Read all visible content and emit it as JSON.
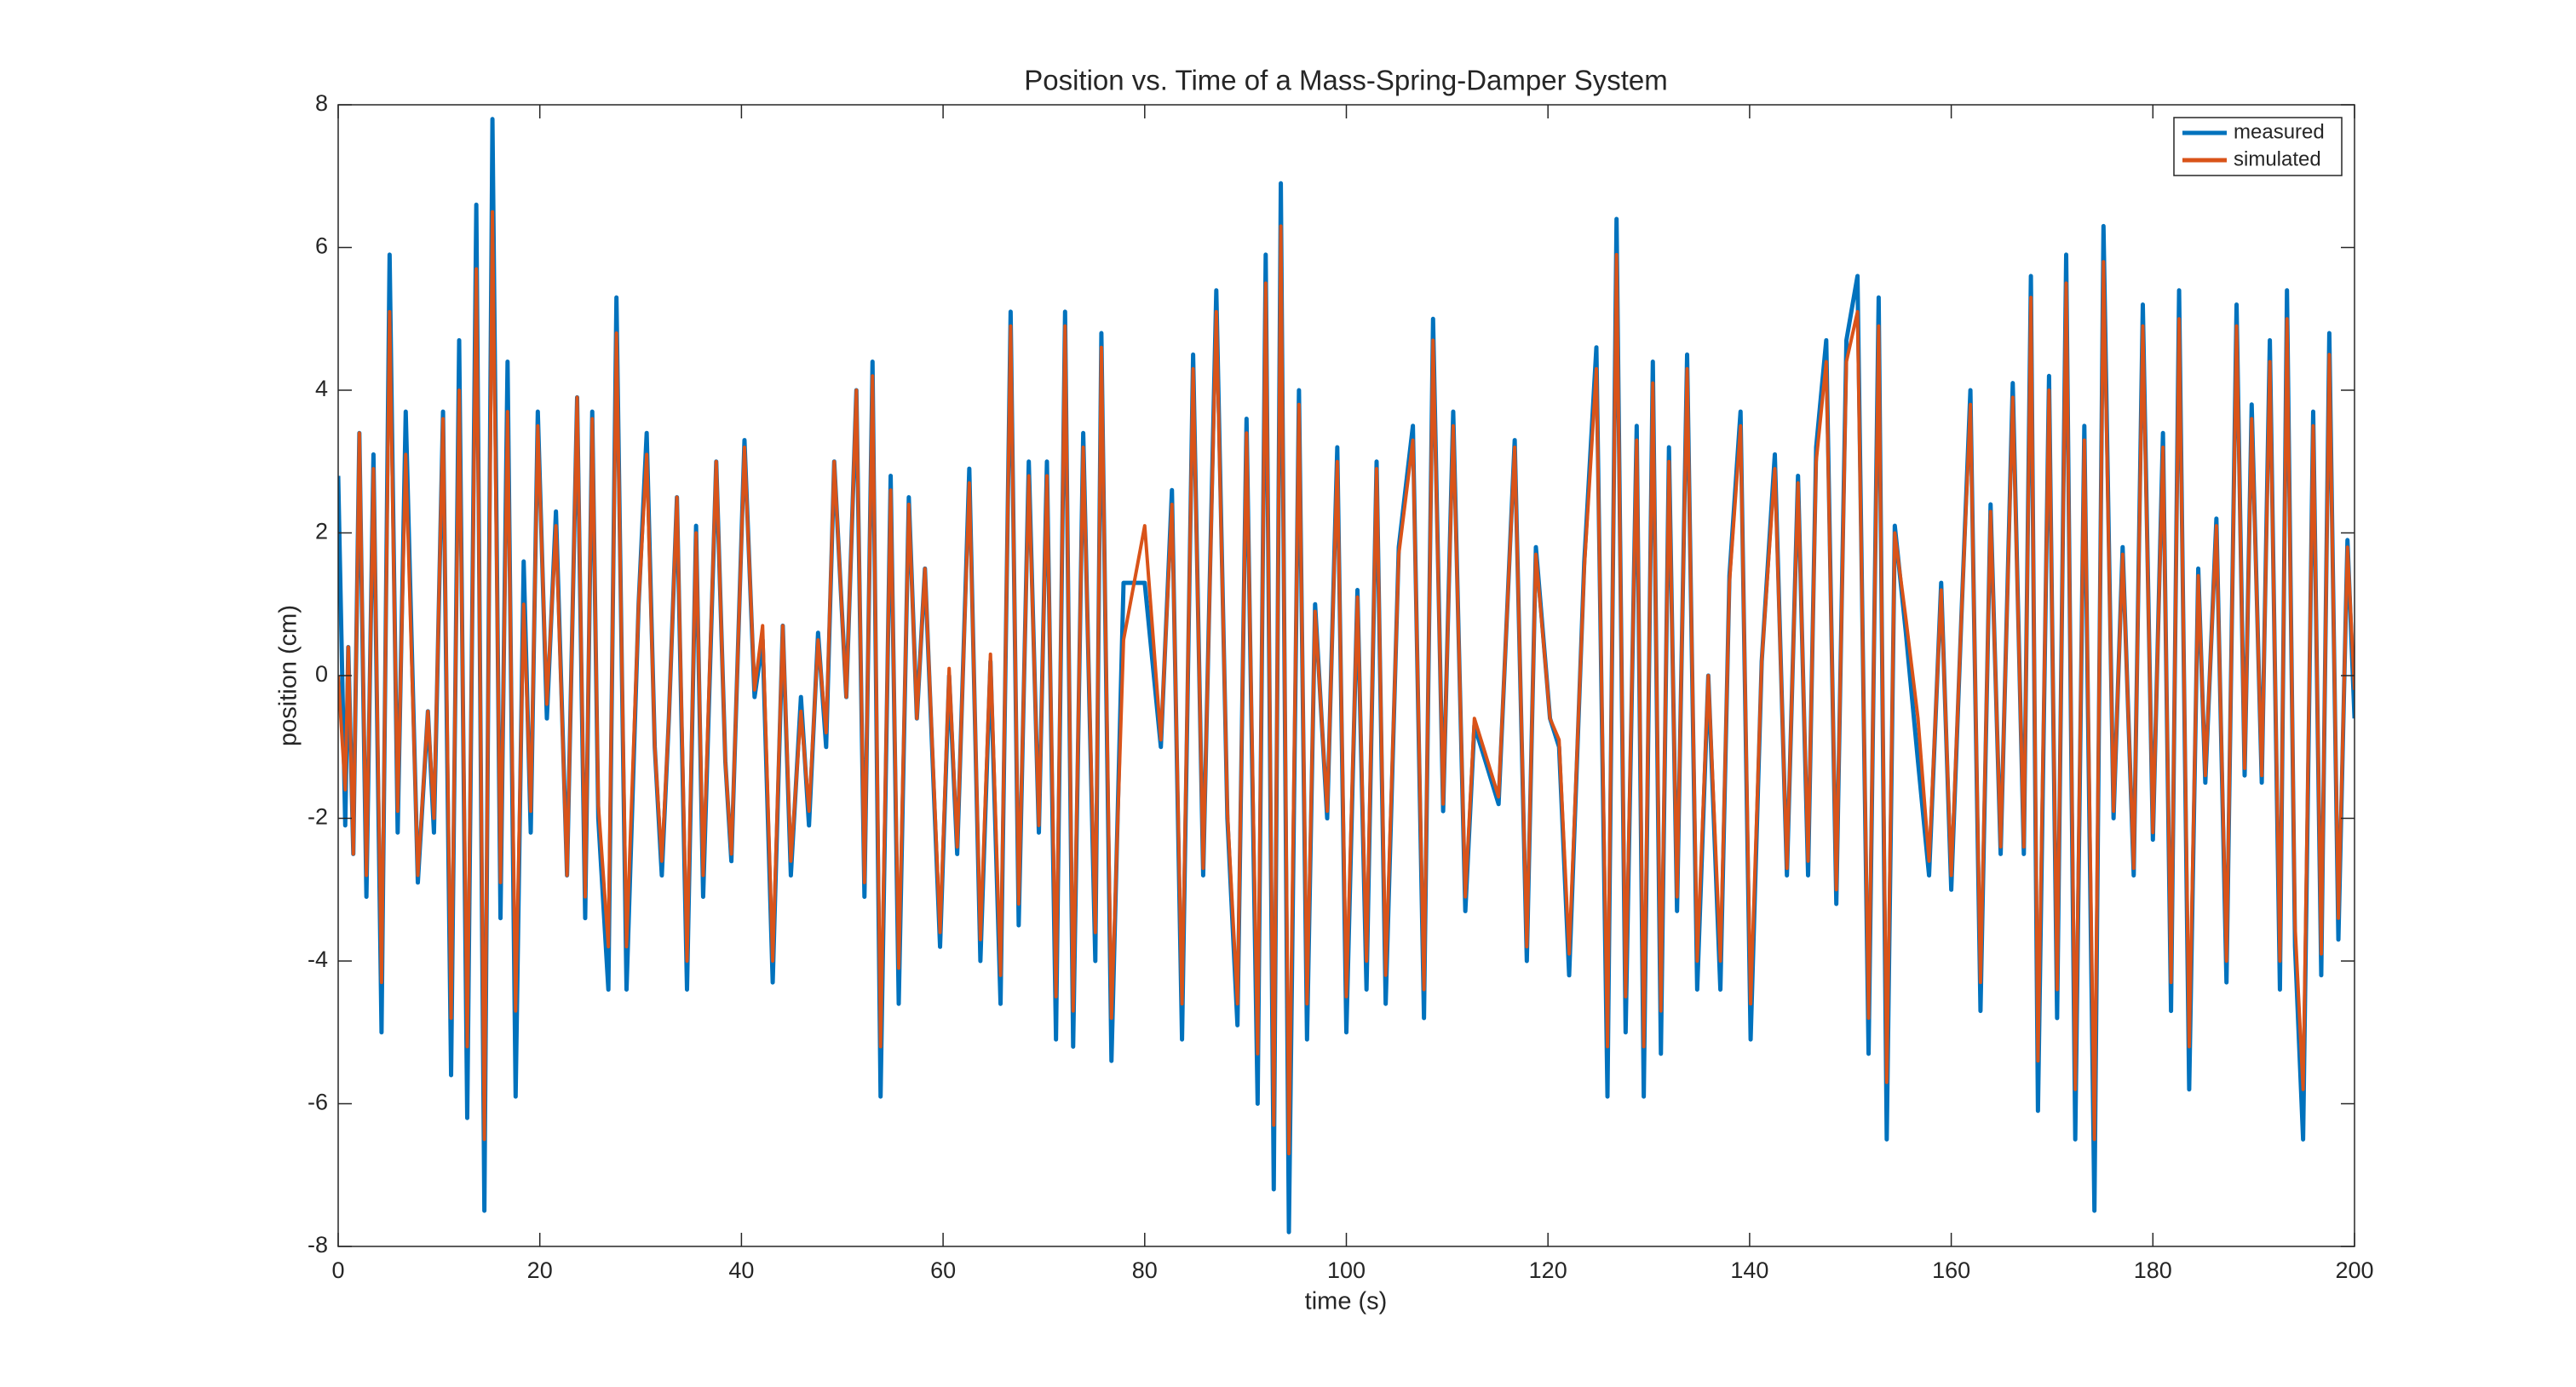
{
  "chart_data": {
    "type": "line",
    "title": "Position vs. Time of a Mass-Spring-Damper System",
    "xlabel": "time (s)",
    "ylabel": "position (cm)",
    "xlim": [
      0,
      200
    ],
    "xticks": [
      0,
      20,
      40,
      60,
      80,
      100,
      120,
      140,
      160,
      180,
      200
    ],
    "ylim": [
      -8,
      8
    ],
    "yticks": [
      -8,
      -6,
      -4,
      -2,
      0,
      2,
      4,
      6,
      8
    ],
    "legend": "upper right",
    "grid": false,
    "x": [
      0,
      0.7,
      1.0,
      1.5,
      2.1,
      2.8,
      3.5,
      4.3,
      5.1,
      5.9,
      6.7,
      7.9,
      8.9,
      9.5,
      10.4,
      11.2,
      12.0,
      12.8,
      13.7,
      14.5,
      15.3,
      16.1,
      16.8,
      17.6,
      18.4,
      19.1,
      19.8,
      20.7,
      21.6,
      22.7,
      23.7,
      24.5,
      25.2,
      25.8,
      26.8,
      27.6,
      28.6,
      29.8,
      30.6,
      31.4,
      32.1,
      32.8,
      33.6,
      34.6,
      35.5,
      36.2,
      37.5,
      38.4,
      39.0,
      40.3,
      41.3,
      42.1,
      43.1,
      44.1,
      44.9,
      45.9,
      46.7,
      47.6,
      48.4,
      49.2,
      50.4,
      51.4,
      52.2,
      53.0,
      53.8,
      54.8,
      55.6,
      56.6,
      57.4,
      58.2,
      59.7,
      60.6,
      61.4,
      62.6,
      63.7,
      64.7,
      65.7,
      66.7,
      67.5,
      68.5,
      69.5,
      70.3,
      71.2,
      72.1,
      72.9,
      73.9,
      75.1,
      75.7,
      76.7,
      77.9,
      80.0,
      81.6,
      82.7,
      83.7,
      84.8,
      85.8,
      87.1,
      88.2,
      89.2,
      90.1,
      91.2,
      92.0,
      92.8,
      93.5,
      94.3,
      95.3,
      96.1,
      96.9,
      98.1,
      99.1,
      100.0,
      101.1,
      102.0,
      103.0,
      103.9,
      105.2,
      106.6,
      107.7,
      108.6,
      109.6,
      110.6,
      111.8,
      112.7,
      113.8,
      115.1,
      116.7,
      117.9,
      118.8,
      120.2,
      121.1,
      122.1,
      123.6,
      124.8,
      125.9,
      126.8,
      127.7,
      128.8,
      129.5,
      130.4,
      131.2,
      132.0,
      132.8,
      133.8,
      134.8,
      135.9,
      137.1,
      138.0,
      139.1,
      140.1,
      141.2,
      142.5,
      143.7,
      144.8,
      145.8,
      146.6,
      147.6,
      148.6,
      149.6,
      150.7,
      151.8,
      152.8,
      153.6,
      154.4,
      155.5,
      156.7,
      157.8,
      159.0,
      160.0,
      161.0,
      161.9,
      162.9,
      163.9,
      164.9,
      166.1,
      167.2,
      167.9,
      168.6,
      169.7,
      170.5,
      171.4,
      172.3,
      173.2,
      174.2,
      175.1,
      176.1,
      177.0,
      178.1,
      179.0,
      180.0,
      181.0,
      181.8,
      182.6,
      183.6,
      184.5,
      185.2,
      186.3,
      187.3,
      188.3,
      189.1,
      189.8,
      190.8,
      191.6,
      192.6,
      193.3,
      194.1,
      194.9,
      195.9,
      196.7,
      197.5,
      198.4,
      199.3,
      200.0
    ],
    "series": [
      {
        "name": "measured",
        "color": "#0072bd",
        "values": [
          2.8,
          -2.1,
          0.4,
          -2.5,
          3.4,
          -3.1,
          3.1,
          -5.0,
          5.9,
          -2.2,
          3.7,
          -2.9,
          -0.5,
          -2.2,
          3.7,
          -5.6,
          4.7,
          -6.2,
          6.6,
          -7.5,
          7.8,
          -3.4,
          4.4,
          -5.9,
          1.6,
          -2.2,
          3.7,
          -0.6,
          2.3,
          -2.8,
          3.9,
          -3.4,
          3.7,
          -2.0,
          -4.4,
          5.3,
          -4.4,
          1.0,
          3.4,
          -1.0,
          -2.8,
          -0.6,
          2.5,
          -4.4,
          2.1,
          -3.1,
          3.0,
          -1.2,
          -2.6,
          3.3,
          -0.3,
          0.5,
          -4.3,
          0.7,
          -2.8,
          -0.3,
          -2.1,
          0.6,
          -1.0,
          3.0,
          -0.3,
          4.0,
          -3.1,
          4.4,
          -5.9,
          2.8,
          -4.6,
          2.5,
          -0.6,
          1.5,
          -3.8,
          0.0,
          -2.5,
          2.9,
          -4.0,
          0.2,
          -4.6,
          5.1,
          -3.5,
          3.0,
          -2.2,
          3.0,
          -5.1,
          5.1,
          -5.2,
          3.4,
          -4.0,
          4.8,
          -5.4,
          1.3,
          1.3,
          -1.0,
          2.6,
          -5.1,
          4.5,
          -2.8,
          5.4,
          -2.0,
          -4.9,
          3.6,
          -6.0,
          5.9,
          -7.2,
          6.9,
          -7.8,
          4.0,
          -5.1,
          1.0,
          -2.0,
          3.2,
          -5.0,
          1.2,
          -4.4,
          3.0,
          -4.6,
          1.8,
          3.5,
          -4.8,
          5.0,
          -1.9,
          3.7,
          -3.3,
          -0.7,
          -1.2,
          -1.8,
          3.3,
          -4.0,
          1.8,
          -0.6,
          -1.0,
          -4.2,
          1.6,
          4.6,
          -5.9,
          6.4,
          -5.0,
          3.5,
          -5.9,
          4.4,
          -5.3,
          3.2,
          -3.3,
          4.5,
          -4.4,
          0.0,
          -4.4,
          1.4,
          3.7,
          -5.1,
          0.2,
          3.1,
          -2.8,
          2.8,
          -2.8,
          3.2,
          4.7,
          -3.2,
          4.7,
          5.6,
          -5.3,
          5.3,
          -6.5,
          2.1,
          0.6,
          -1.2,
          -2.8,
          1.3,
          -3.0,
          0.8,
          4.0,
          -4.7,
          2.4,
          -2.5,
          4.1,
          -2.5,
          5.6,
          -6.1,
          4.2,
          -4.8,
          5.9,
          -6.5,
          3.5,
          -7.5,
          6.3,
          -2.0,
          1.8,
          -2.8,
          5.2,
          -2.3,
          3.4,
          -4.7,
          5.4,
          -5.8,
          1.5,
          -1.5,
          2.2,
          -4.3,
          5.2,
          -1.4,
          3.8,
          -1.5,
          4.7,
          -4.4,
          5.4,
          -3.8,
          -6.5,
          3.7,
          -4.2,
          4.8,
          -3.7,
          1.9,
          -0.6
        ]
      },
      {
        "name": "simulated",
        "color": "#d95319",
        "values": [
          0.0,
          -1.6,
          0.4,
          -2.5,
          3.4,
          -2.8,
          2.9,
          -4.3,
          5.1,
          -1.9,
          3.1,
          -2.8,
          -0.5,
          -2.0,
          3.6,
          -4.8,
          4.0,
          -5.2,
          5.7,
          -6.5,
          6.5,
          -2.9,
          3.7,
          -4.7,
          1.0,
          -1.9,
          3.5,
          -0.4,
          2.1,
          -2.8,
          3.9,
          -3.1,
          3.6,
          -1.8,
          -3.8,
          4.8,
          -3.8,
          1.0,
          3.1,
          -1.0,
          -2.6,
          -0.6,
          2.5,
          -4.0,
          2.0,
          -2.8,
          3.0,
          -1.2,
          -2.5,
          3.2,
          -0.2,
          0.7,
          -4.0,
          0.7,
          -2.6,
          -0.5,
          -1.9,
          0.5,
          -0.8,
          3.0,
          -0.3,
          4.0,
          -2.9,
          4.2,
          -5.2,
          2.6,
          -4.1,
          2.4,
          -0.6,
          1.5,
          -3.6,
          0.1,
          -2.4,
          2.7,
          -3.7,
          0.3,
          -4.2,
          4.9,
          -3.2,
          2.8,
          -2.1,
          2.8,
          -4.5,
          4.9,
          -4.7,
          3.2,
          -3.6,
          4.6,
          -4.8,
          0.5,
          2.1,
          -0.9,
          2.4,
          -4.6,
          4.3,
          -2.7,
          5.1,
          -1.9,
          -4.6,
          3.4,
          -5.3,
          5.5,
          -6.3,
          6.3,
          -6.7,
          3.8,
          -4.6,
          0.9,
          -1.9,
          3.0,
          -4.5,
          1.1,
          -4.0,
          2.9,
          -4.2,
          1.7,
          3.3,
          -4.4,
          4.7,
          -1.8,
          3.5,
          -3.1,
          -0.6,
          -1.1,
          -1.7,
          3.2,
          -3.8,
          1.7,
          -0.6,
          -0.9,
          -3.9,
          1.5,
          4.3,
          -5.2,
          5.9,
          -4.5,
          3.3,
          -5.2,
          4.1,
          -4.7,
          3.0,
          -3.1,
          4.3,
          -4.0,
          0.0,
          -4.0,
          1.3,
          3.5,
          -4.6,
          0.2,
          2.9,
          -2.7,
          2.7,
          -2.6,
          3.0,
          4.4,
          -3.0,
          4.4,
          5.1,
          -4.8,
          4.9,
          -5.7,
          2.0,
          0.8,
          -0.6,
          -2.6,
          1.2,
          -2.8,
          0.8,
          3.8,
          -4.3,
          2.3,
          -2.4,
          3.9,
          -2.4,
          5.3,
          -5.4,
          4.0,
          -4.4,
          5.5,
          -5.8,
          3.3,
          -6.5,
          5.8,
          -1.9,
          1.7,
          -2.7,
          4.9,
          -2.2,
          3.2,
          -4.3,
          5.0,
          -5.2,
          1.4,
          -1.4,
          2.1,
          -4.0,
          4.9,
          -1.3,
          3.6,
          -1.4,
          4.4,
          -4.0,
          5.0,
          -3.5,
          -5.8,
          3.5,
          -3.9,
          4.5,
          -3.4,
          1.8,
          -0.2
        ]
      }
    ]
  }
}
